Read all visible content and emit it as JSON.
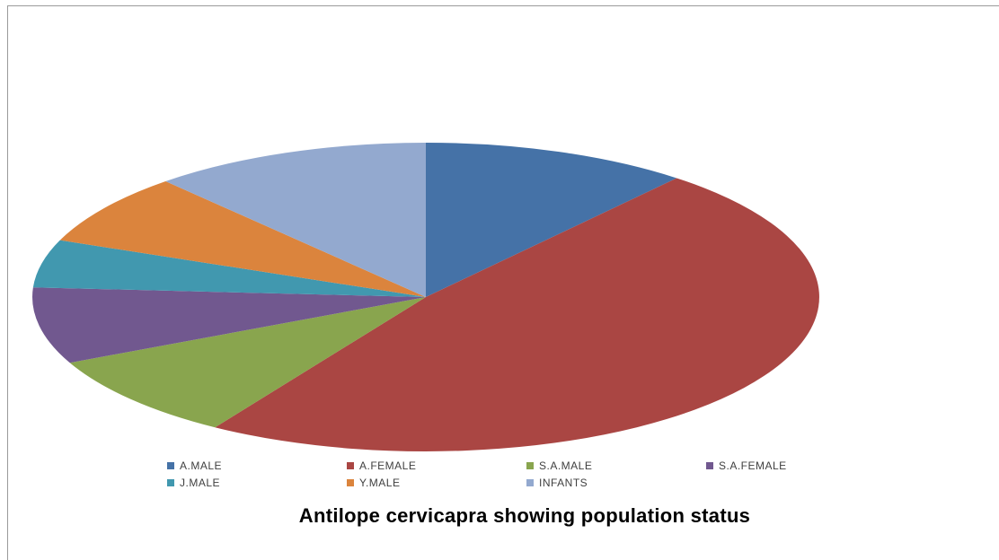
{
  "chart_data": {
    "type": "pie",
    "title": "Antilope cervicapra showing population status",
    "categories": [
      "A.MALE",
      "A.FEMALE",
      "S.A.MALE",
      "S.A.FEMALE",
      "J.MALE",
      "Y.MALE",
      "INFANTS"
    ],
    "values": [
      11,
      48,
      9,
      8,
      5,
      7.5,
      11.5
    ],
    "colors": [
      "#4572a7",
      "#aa4643",
      "#89a54e",
      "#71588f",
      "#4198af",
      "#db843d",
      "#93a9cf"
    ],
    "legend_position": "bottom",
    "start_angle_deg": 0,
    "direction": "clockwise"
  }
}
